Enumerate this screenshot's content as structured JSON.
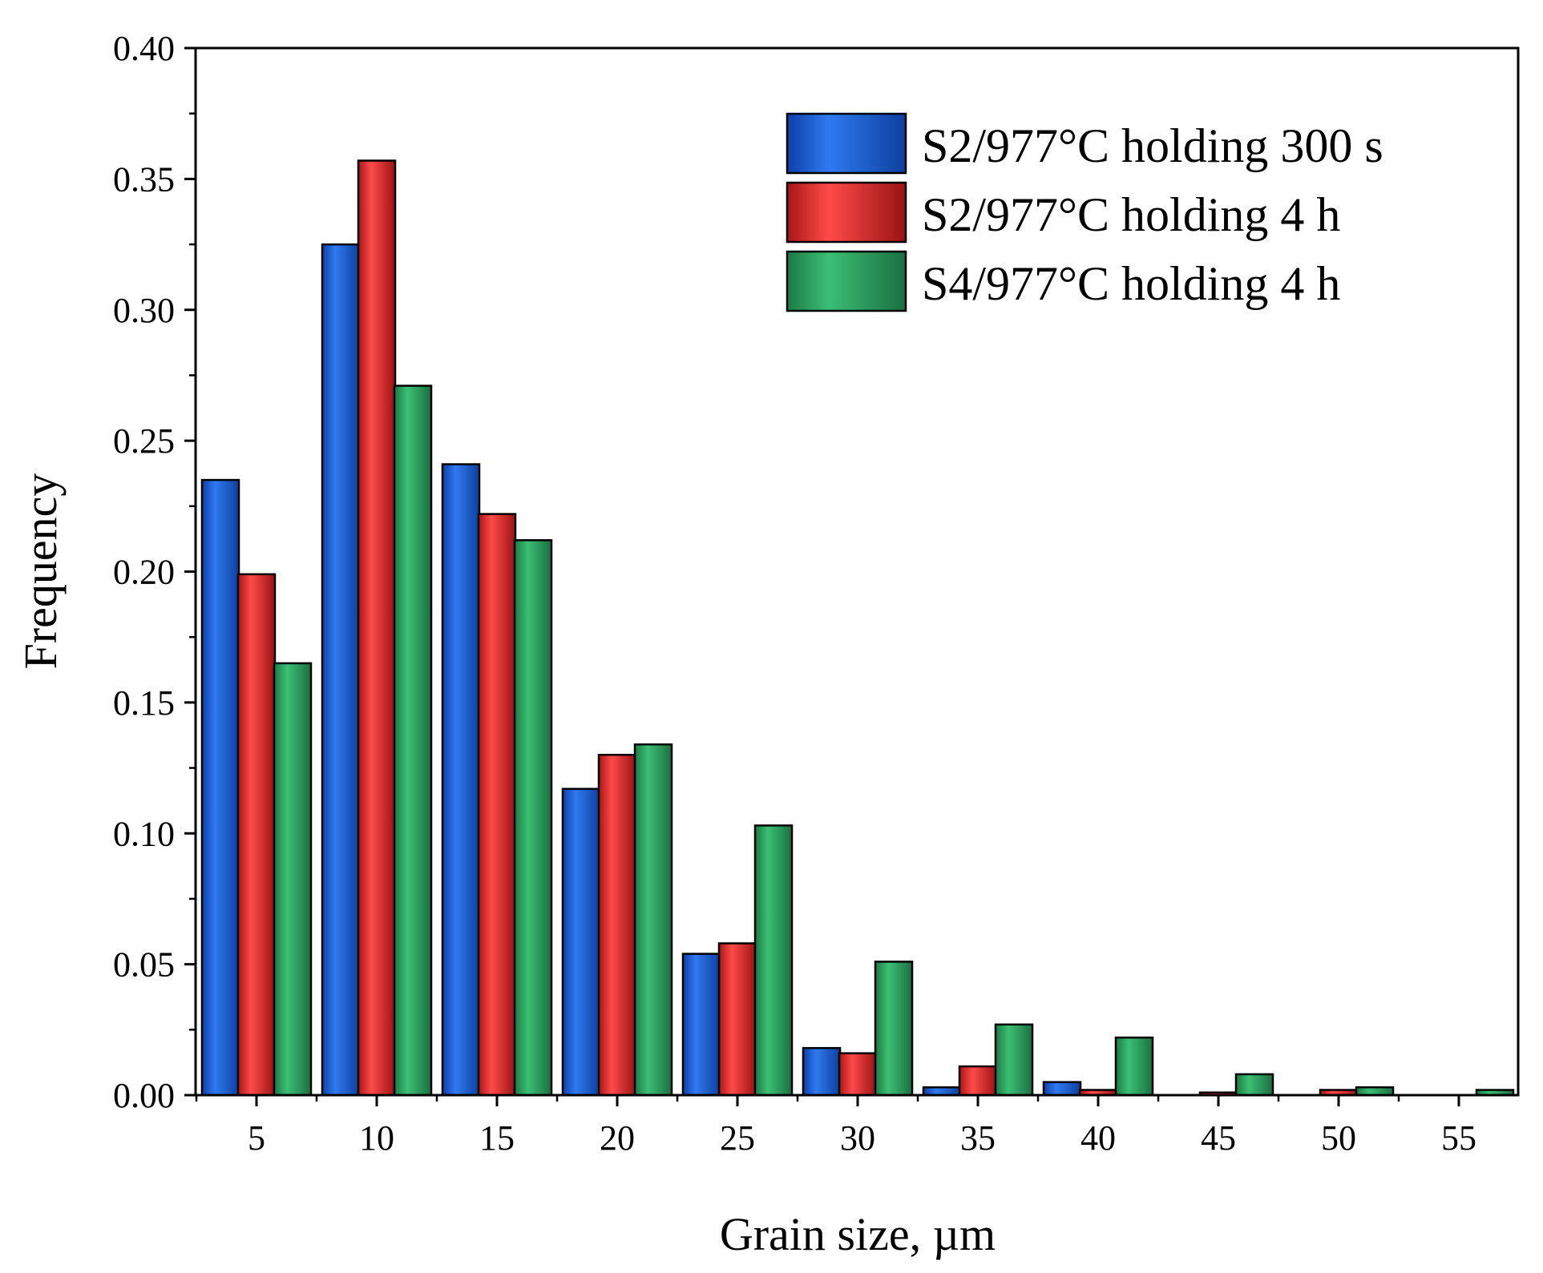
{
  "chart_data": {
    "type": "bar",
    "title": "",
    "xlabel": "Grain size, µm",
    "ylabel": "Frequency",
    "ylim": [
      0,
      0.4
    ],
    "yticks": [
      "0.00",
      "0.05",
      "0.10",
      "0.15",
      "0.20",
      "0.25",
      "0.30",
      "0.35",
      "0.40"
    ],
    "categories": [
      "5",
      "10",
      "15",
      "20",
      "25",
      "30",
      "35",
      "40",
      "45",
      "50",
      "55"
    ],
    "legend_position": "top-right",
    "series": [
      {
        "name": "S2/977°C holding 300 s",
        "color": "#1f5fd6",
        "values": [
          0.235,
          0.325,
          0.241,
          0.117,
          0.054,
          0.018,
          0.003,
          0.005,
          0.0,
          0.0,
          0.0
        ]
      },
      {
        "name": "S2/977°C holding 4 h",
        "color": "#e63333",
        "values": [
          0.199,
          0.357,
          0.222,
          0.13,
          0.058,
          0.016,
          0.011,
          0.002,
          0.001,
          0.002,
          0.0
        ]
      },
      {
        "name": "S4/977°C holding 4 h",
        "color": "#2e9e5e",
        "values": [
          0.165,
          0.271,
          0.212,
          0.134,
          0.103,
          0.051,
          0.027,
          0.022,
          0.008,
          0.003,
          0.002
        ]
      }
    ]
  }
}
